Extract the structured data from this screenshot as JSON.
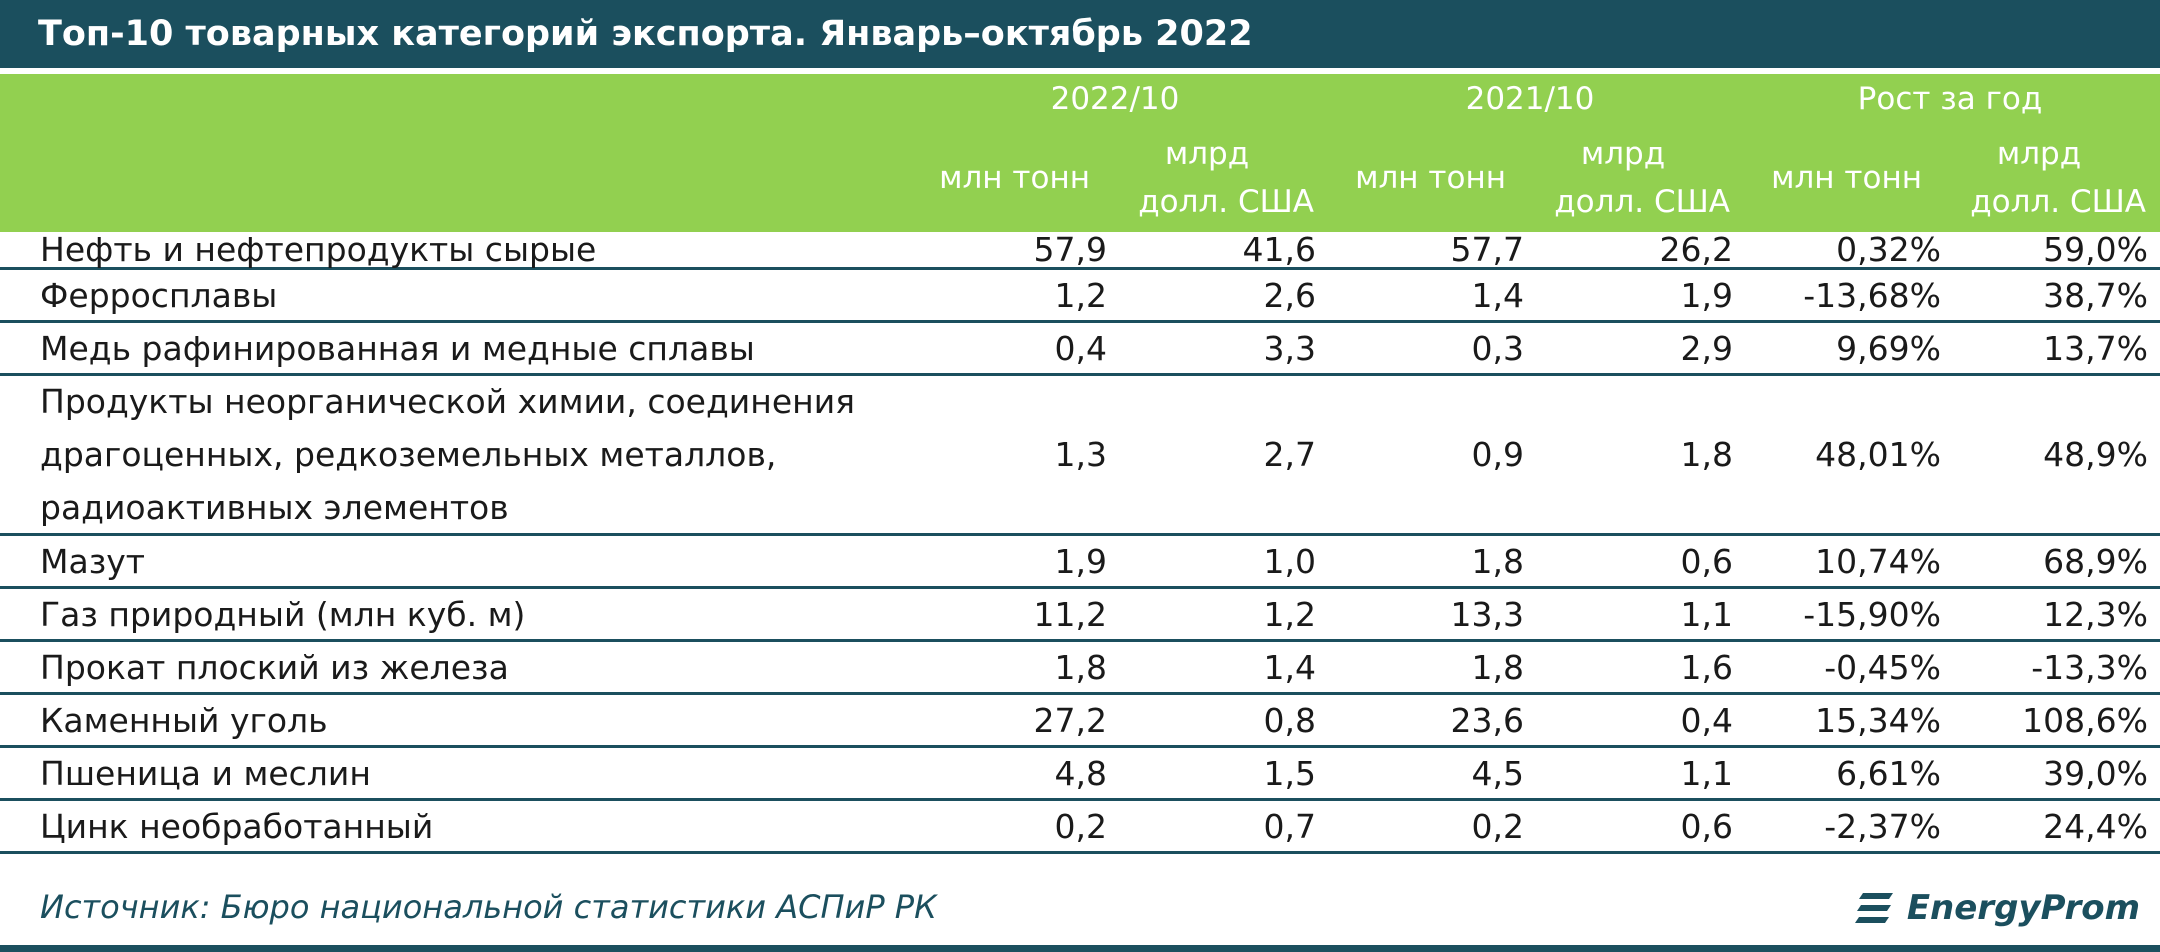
{
  "title": "Топ-10 товарных категорий экспорта. Январь–октябрь 2022",
  "header": {
    "groups": [
      "2022/10",
      "2021/10",
      "Рост за год"
    ],
    "unit_tonnes": "млн тонн",
    "unit_usd_line1": "млрд",
    "unit_usd_line2": "долл. США"
  },
  "chart_data": {
    "type": "table",
    "title": "Топ-10 товарных категорий экспорта. Январь–октябрь 2022",
    "columns": [
      "2022/10 млн тонн",
      "2022/10 млрд долл. США",
      "2021/10 млн тонн",
      "2021/10 млрд долл. США",
      "Рост за год млн тонн",
      "Рост за год млрд долл. США"
    ],
    "rows": [
      {
        "name": "Нефть и нефтепродукты сырые",
        "values": [
          "57,9",
          "41,6",
          "57,7",
          "26,2",
          "0,32%",
          "59,0%"
        ]
      },
      {
        "name": "Ферросплавы",
        "values": [
          "1,2",
          "2,6",
          "1,4",
          "1,9",
          "-13,68%",
          "38,7%"
        ]
      },
      {
        "name": "Медь рафинированная и медные сплавы",
        "values": [
          "0,4",
          "3,3",
          "0,3",
          "2,9",
          "9,69%",
          "13,7%"
        ]
      },
      {
        "name": "Продукты неорганической химии, соединения драгоценных, редкоземельных металлов, радиоактивных элементов",
        "values": [
          "1,3",
          "2,7",
          "0,9",
          "1,8",
          "48,01%",
          "48,9%"
        ]
      },
      {
        "name": "Мазут",
        "values": [
          "1,9",
          "1,0",
          "1,8",
          "0,6",
          "10,74%",
          "68,9%"
        ]
      },
      {
        "name": "Газ природный (млн куб. м)",
        "values": [
          "11,2",
          "1,2",
          "13,3",
          "1,1",
          "-15,90%",
          "12,3%"
        ]
      },
      {
        "name": "Прокат плоский из железа",
        "values": [
          "1,8",
          "1,4",
          "1,8",
          "1,6",
          "-0,45%",
          "-13,3%"
        ]
      },
      {
        "name": "Каменный уголь",
        "values": [
          "27,2",
          "0,8",
          "23,6",
          "0,4",
          "15,34%",
          "108,6%"
        ]
      },
      {
        "name": "Пшеница и меслин",
        "values": [
          "4,8",
          "1,5",
          "4,5",
          "1,1",
          "6,61%",
          "39,0%"
        ]
      },
      {
        "name": "Цинк необработанный",
        "values": [
          "0,2",
          "0,7",
          "0,2",
          "0,6",
          "-2,37%",
          "24,4%"
        ]
      }
    ]
  },
  "source": "Источник: Бюро национальной статистики АСПиР РК",
  "logo": "EnergyProm",
  "colors": {
    "title_bg": "#1b4f5e",
    "header_bg": "#92d050",
    "text_on_header": "#ffffff"
  }
}
